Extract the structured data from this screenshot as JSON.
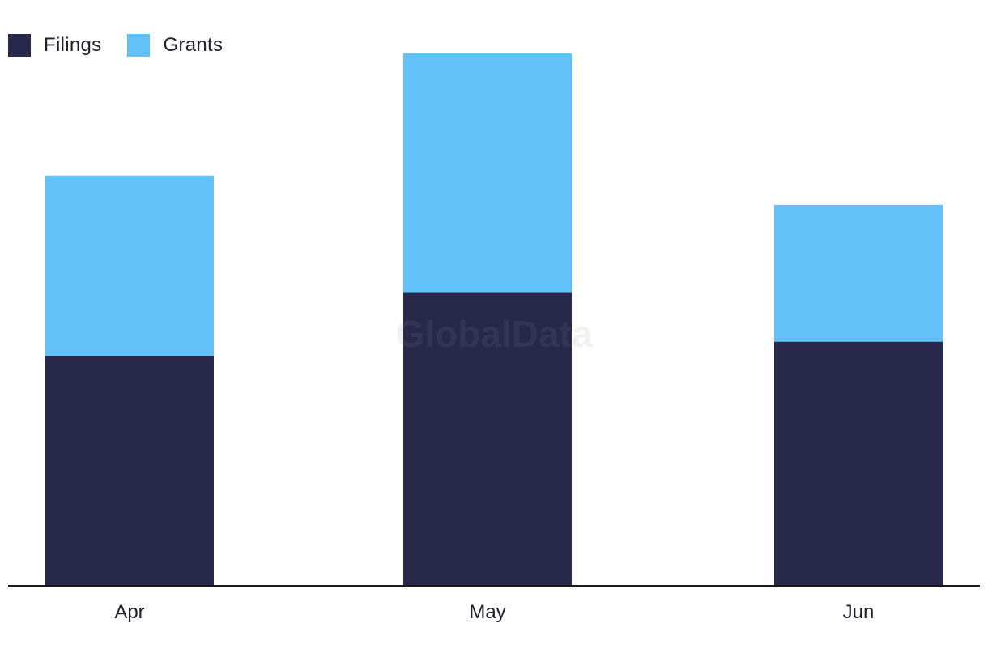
{
  "chart_data": {
    "type": "bar",
    "stacked": true,
    "categories": [
      "Apr",
      "May",
      "Jun"
    ],
    "series": [
      {
        "name": "Filings",
        "color": "#28284b",
        "values": [
          9.4,
          12.0,
          10.0
        ]
      },
      {
        "name": "Grants",
        "color": "#63c1f9",
        "values": [
          7.4,
          9.8,
          5.6
        ]
      }
    ],
    "ylim": [
      0,
      22
    ],
    "grid": false,
    "legend_position": "top-left",
    "watermark": "GlobalData"
  }
}
